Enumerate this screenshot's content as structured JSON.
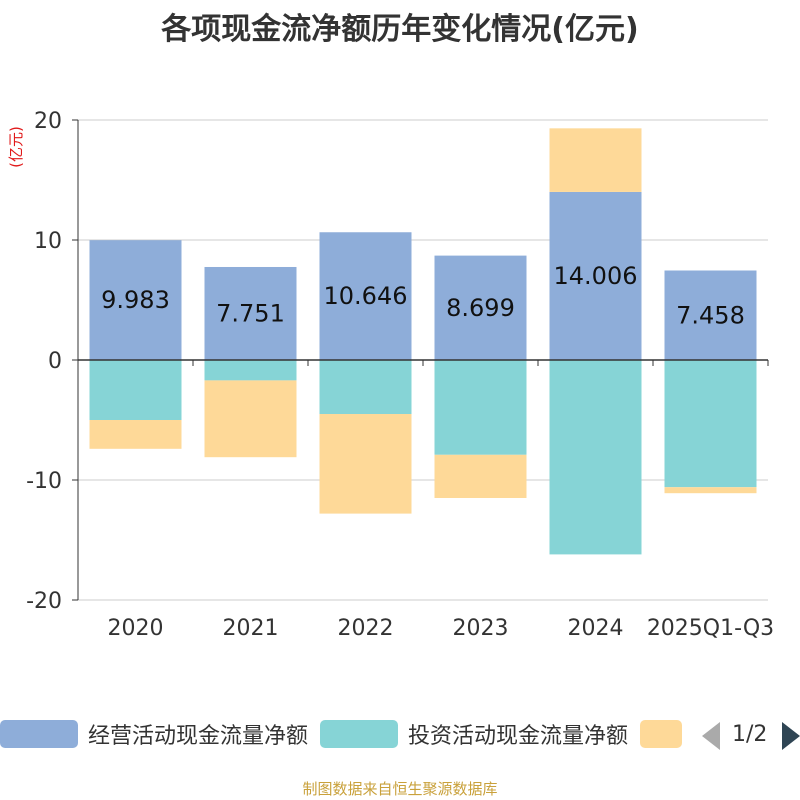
{
  "chart_data": {
    "type": "bar",
    "title": "各项现金流净额历年变化情况(亿元)",
    "ylabel": "(亿元)",
    "ylim": [
      -20,
      20
    ],
    "yticks": [
      20,
      10,
      0,
      -10,
      -20
    ],
    "categories": [
      "2020",
      "2021",
      "2022",
      "2023",
      "2024",
      "2025Q1-Q3"
    ],
    "stacked": true,
    "series": [
      {
        "name": "经营活动现金流量净额",
        "color": "#8eadd9",
        "values": [
          9.983,
          7.751,
          10.646,
          8.699,
          14.006,
          7.458
        ],
        "labels": [
          "9.983",
          "7.751",
          "10.646",
          "8.699",
          "14.006",
          "7.458"
        ]
      },
      {
        "name": "投资活动现金流量净额",
        "color": "#86d4d6",
        "values": [
          -5.0,
          -1.7,
          -4.5,
          -7.9,
          -16.2,
          -10.6
        ]
      },
      {
        "name": "",
        "color": "#fed998",
        "values": [
          -2.4,
          -6.4,
          -8.3,
          -3.6,
          5.3,
          -0.5
        ]
      }
    ]
  },
  "legend": {
    "pager": "1/2"
  },
  "source": "制图数据来自恒生聚源数据库"
}
